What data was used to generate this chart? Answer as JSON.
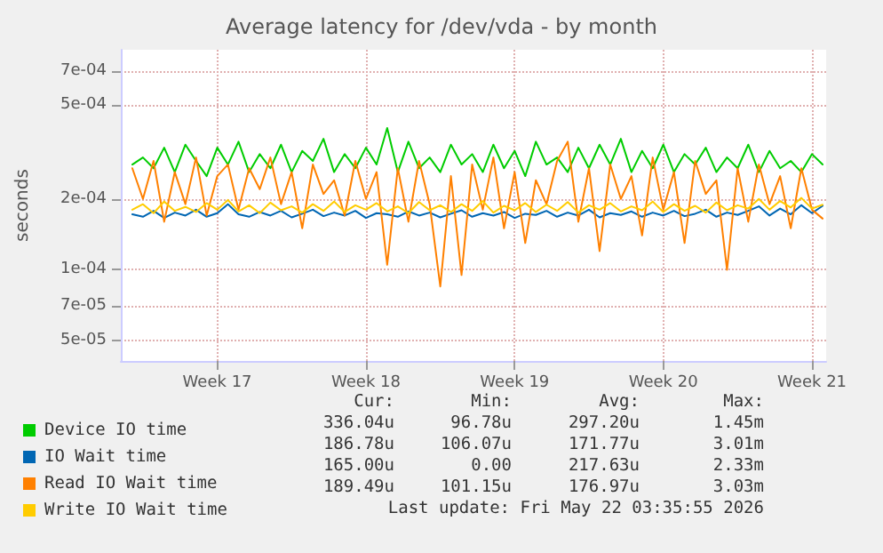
{
  "chart_data": {
    "type": "line",
    "title": "Average latency for /dev/vda - by month",
    "ylabel": "seconds",
    "log": "y",
    "grid": true,
    "legend": "bottom left",
    "marker": "none",
    "line_style": "solid",
    "x": [
      "2026-04-19T12:00",
      "2026-04-20T00:00",
      "2026-04-20T12:00",
      "2026-04-21T00:00",
      "2026-04-21T12:00",
      "2026-04-22T00:00",
      "2026-04-22T12:00",
      "2026-04-23T00:00",
      "2026-04-23T12:00",
      "2026-04-24T00:00",
      "2026-04-24T12:00",
      "2026-04-25T00:00",
      "2026-04-25T12:00",
      "2026-04-26T00:00",
      "2026-04-26T12:00",
      "2026-04-27T00:00",
      "2026-04-27T12:00",
      "2026-04-28T00:00",
      "2026-04-28T12:00",
      "2026-04-29T00:00",
      "2026-04-29T12:00",
      "2026-04-30T00:00",
      "2026-04-30T12:00",
      "2026-05-01T00:00",
      "2026-05-01T12:00",
      "2026-05-02T00:00",
      "2026-05-02T12:00",
      "2026-05-03T00:00",
      "2026-05-03T12:00",
      "2026-05-04T00:00",
      "2026-05-04T12:00",
      "2026-05-05T00:00",
      "2026-05-05T12:00",
      "2026-05-06T00:00",
      "2026-05-06T12:00",
      "2026-05-07T00:00",
      "2026-05-07T12:00",
      "2026-05-08T00:00",
      "2026-05-08T12:00",
      "2026-05-09T00:00",
      "2026-05-09T12:00",
      "2026-05-10T00:00",
      "2026-05-10T12:00",
      "2026-05-11T00:00",
      "2026-05-11T12:00",
      "2026-05-12T00:00",
      "2026-05-12T12:00",
      "2026-05-13T00:00",
      "2026-05-13T12:00",
      "2026-05-14T00:00",
      "2026-05-14T12:00",
      "2026-05-15T00:00",
      "2026-05-15T12:00",
      "2026-05-16T00:00",
      "2026-05-16T12:00",
      "2026-05-17T00:00",
      "2026-05-17T12:00",
      "2026-05-18T00:00",
      "2026-05-18T12:00",
      "2026-05-19T00:00",
      "2026-05-19T12:00",
      "2026-05-20T00:00",
      "2026-05-20T12:00",
      "2026-05-21T00:00",
      "2026-05-21T12:00",
      "2026-05-22T00:00"
    ],
    "xlim": [
      "2026-04-18T23:00",
      "2026-05-22T04:00"
    ],
    "xticks": [
      {
        "value": "2026-04-23T12:00",
        "label": "Week 17"
      },
      {
        "value": "2026-04-30T12:00",
        "label": "Week 18"
      },
      {
        "value": "2026-05-07T12:00",
        "label": "Week 19"
      },
      {
        "value": "2026-05-14T12:00",
        "label": "Week 20"
      },
      {
        "value": "2026-05-21T12:00",
        "label": "Week 21"
      }
    ],
    "ylim": [
      4.1e-05,
      0.00086
    ],
    "yticks": [
      {
        "value": 5e-05,
        "label": "5e-05"
      },
      {
        "value": 7e-05,
        "label": "7e-05"
      },
      {
        "value": 0.0001,
        "label": "1e-04"
      },
      {
        "value": 0.0002,
        "label": "2e-04"
      },
      {
        "value": 0.0005,
        "label": "5e-04"
      },
      {
        "value": 0.0007,
        "label": "7e-04"
      }
    ],
    "series": [
      {
        "name": "Device IO time",
        "color": "#00cc00",
        "values": [
          0.00028,
          0.0003,
          0.00027,
          0.00033,
          0.00026,
          0.00034,
          0.00029,
          0.00025,
          0.00033,
          0.00028,
          0.00035,
          0.00026,
          0.00031,
          0.00027,
          0.00034,
          0.00026,
          0.00032,
          0.00029,
          0.00036,
          0.00026,
          0.00031,
          0.00027,
          0.00033,
          0.00028,
          0.0004,
          0.00026,
          0.00035,
          0.00027,
          0.0003,
          0.00026,
          0.00034,
          0.00028,
          0.00031,
          0.00026,
          0.00034,
          0.00027,
          0.00032,
          0.00025,
          0.00035,
          0.00028,
          0.0003,
          0.00026,
          0.00033,
          0.00027,
          0.00034,
          0.00028,
          0.00036,
          0.00026,
          0.00032,
          0.00027,
          0.00034,
          0.00026,
          0.00031,
          0.00028,
          0.00033,
          0.00026,
          0.0003,
          0.00027,
          0.00034,
          0.00026,
          0.00032,
          0.00027,
          0.00029,
          0.00026,
          0.00031,
          0.00028
        ]
      },
      {
        "name": "IO Wait time",
        "color": "#0066b3",
        "values": [
          0.000172,
          0.000168,
          0.000178,
          0.000166,
          0.000175,
          0.00017,
          0.00018,
          0.000168,
          0.000174,
          0.00019,
          0.000172,
          0.000168,
          0.000176,
          0.00017,
          0.000178,
          0.000167,
          0.000173,
          0.00018,
          0.000169,
          0.000175,
          0.00017,
          0.000178,
          0.000166,
          0.000174,
          0.000172,
          0.000168,
          0.000177,
          0.00017,
          0.000175,
          0.000167,
          0.000173,
          0.000179,
          0.000168,
          0.000174,
          0.00017,
          0.000176,
          0.000166,
          0.000173,
          0.000171,
          0.000178,
          0.000168,
          0.000175,
          0.00017,
          0.00018,
          0.000167,
          0.000174,
          0.000171,
          0.000177,
          0.000168,
          0.000175,
          0.00017,
          0.000178,
          0.000169,
          0.000173,
          0.00018,
          0.000168,
          0.000175,
          0.000171,
          0.000178,
          0.000186,
          0.00017,
          0.000182,
          0.000172,
          0.000188,
          0.000174,
          0.000187
        ]
      },
      {
        "name": "Read IO Wait time",
        "color": "#ff8000",
        "values": [
          0.00027,
          0.0002,
          0.00029,
          0.00016,
          0.00026,
          0.00019,
          0.0003,
          0.00017,
          0.00025,
          0.00028,
          0.00018,
          0.00027,
          0.00022,
          0.0003,
          0.00019,
          0.00026,
          0.00015,
          0.00028,
          0.00021,
          0.00024,
          0.00017,
          0.00029,
          0.0002,
          0.00026,
          0.000105,
          0.00027,
          0.00016,
          0.00029,
          0.00019,
          8.5e-05,
          0.00025,
          9.5e-05,
          0.00028,
          0.00018,
          0.0003,
          0.00015,
          0.00026,
          0.00013,
          0.00024,
          0.00019,
          0.00029,
          0.00035,
          0.00016,
          0.00027,
          0.00012,
          0.00028,
          0.0002,
          0.00025,
          0.00014,
          0.0003,
          0.00018,
          0.00026,
          0.00013,
          0.00029,
          0.00021,
          0.00024,
          0.0001,
          0.00027,
          0.00016,
          0.00028,
          0.00019,
          0.00025,
          0.00015,
          0.00027,
          0.00018,
          0.000165
        ]
      },
      {
        "name": "Write IO Wait time",
        "color": "#ffcc00",
        "values": [
          0.00018,
          0.00019,
          0.000174,
          0.000195,
          0.000178,
          0.000185,
          0.000176,
          0.000192,
          0.00018,
          0.000198,
          0.000177,
          0.000188,
          0.000174,
          0.000193,
          0.000179,
          0.000186,
          0.000175,
          0.00019,
          0.000178,
          0.000195,
          0.000176,
          0.000188,
          0.00018,
          0.000192,
          0.000177,
          0.000186,
          0.000174,
          0.000194,
          0.000179,
          0.000188,
          0.000176,
          0.00019,
          0.000178,
          0.000196,
          0.000175,
          0.000187,
          0.000179,
          0.000192,
          0.000176,
          0.000189,
          0.000178,
          0.000194,
          0.000175,
          0.000188,
          0.00018,
          0.000192,
          0.000177,
          0.000186,
          0.000179,
          0.000195,
          0.000176,
          0.00019,
          0.000178,
          0.000187,
          0.000175,
          0.000193,
          0.000179,
          0.000188,
          0.000182,
          0.0002,
          0.00018,
          0.000196,
          0.000184,
          0.000202,
          0.000182,
          0.000189
        ]
      }
    ],
    "annotations": [
      "Cur:",
      "Min:",
      "Avg:",
      "Max:",
      "336.04u",
      "96.78u",
      "297.20u",
      "1.45m",
      "186.78u",
      "106.07u",
      "171.77u",
      "3.01m",
      "165.00u",
      "0.00",
      "217.63u",
      "2.33m",
      "189.49u",
      "101.15u",
      "176.97u",
      "3.03m",
      "Last update: Fri May 22 03:35:55 2026"
    ]
  }
}
